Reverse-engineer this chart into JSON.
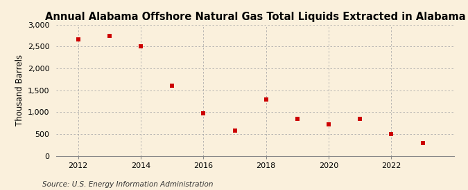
{
  "title": "Annual Alabama Offshore Natural Gas Total Liquids Extracted in Alabama",
  "ylabel": "Thousand Barrels",
  "source": "Source: U.S. Energy Information Administration",
  "years": [
    2012,
    2013,
    2014,
    2015,
    2016,
    2017,
    2018,
    2019,
    2020,
    2021,
    2022,
    2023
  ],
  "values": [
    2670,
    2750,
    2500,
    1600,
    975,
    570,
    1290,
    840,
    720,
    850,
    500,
    300
  ],
  "xlim": [
    2011.3,
    2024.0
  ],
  "ylim": [
    0,
    3000
  ],
  "yticks": [
    0,
    500,
    1000,
    1500,
    2000,
    2500,
    3000
  ],
  "xticks": [
    2012,
    2014,
    2016,
    2018,
    2020,
    2022
  ],
  "marker_color": "#CC0000",
  "marker": "s",
  "marker_size": 4,
  "background_color": "#FAF0DC",
  "grid_color": "#AAAAAA",
  "title_fontsize": 10.5,
  "axis_label_fontsize": 8.5,
  "tick_fontsize": 8,
  "source_fontsize": 7.5
}
